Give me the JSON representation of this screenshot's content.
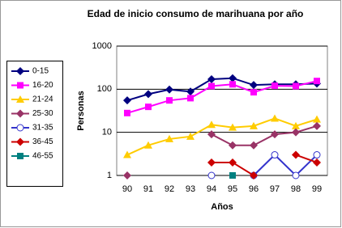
{
  "chart_data": {
    "type": "line",
    "title": "Edad de inicio consumo de marihuana por año",
    "x_label": "Años",
    "y_label": "Personas",
    "categories": [
      "90",
      "91",
      "92",
      "93",
      "94",
      "95",
      "96",
      "97",
      "98",
      "99"
    ],
    "log_scale": true,
    "ylim": [
      1,
      1000
    ],
    "yticks": [
      1,
      10,
      100,
      1000
    ],
    "grid": true,
    "legend": "left",
    "series": [
      {
        "name": "0-15",
        "color": "#000080",
        "marker": "diamond",
        "values": [
          55,
          77,
          98,
          88,
          170,
          180,
          125,
          130,
          130,
          135
        ]
      },
      {
        "name": "16-20",
        "color": "#ff00ff",
        "marker": "square",
        "values": [
          28,
          39,
          55,
          62,
          118,
          130,
          85,
          120,
          118,
          155
        ]
      },
      {
        "name": "21-24",
        "color": "#ffcc00",
        "marker": "triangle",
        "values": [
          3,
          5,
          7,
          8,
          15,
          13,
          14,
          21,
          14,
          20
        ]
      },
      {
        "name": "25-30",
        "color": "#993366",
        "marker": "diamond",
        "values": [
          1,
          null,
          null,
          null,
          9,
          5,
          5,
          9,
          10,
          14
        ]
      },
      {
        "name": "31-35",
        "color": "#3333cc",
        "marker": "circle",
        "values": [
          null,
          null,
          null,
          null,
          1,
          null,
          1,
          3,
          1,
          3
        ]
      },
      {
        "name": "36-45",
        "color": "#cc0000",
        "marker": "diamond",
        "values": [
          null,
          null,
          null,
          null,
          2,
          2,
          1,
          null,
          3,
          2
        ]
      },
      {
        "name": "46-55",
        "color": "#008080",
        "marker": "square",
        "values": [
          null,
          null,
          null,
          null,
          null,
          1,
          null,
          null,
          null,
          null
        ]
      }
    ]
  }
}
